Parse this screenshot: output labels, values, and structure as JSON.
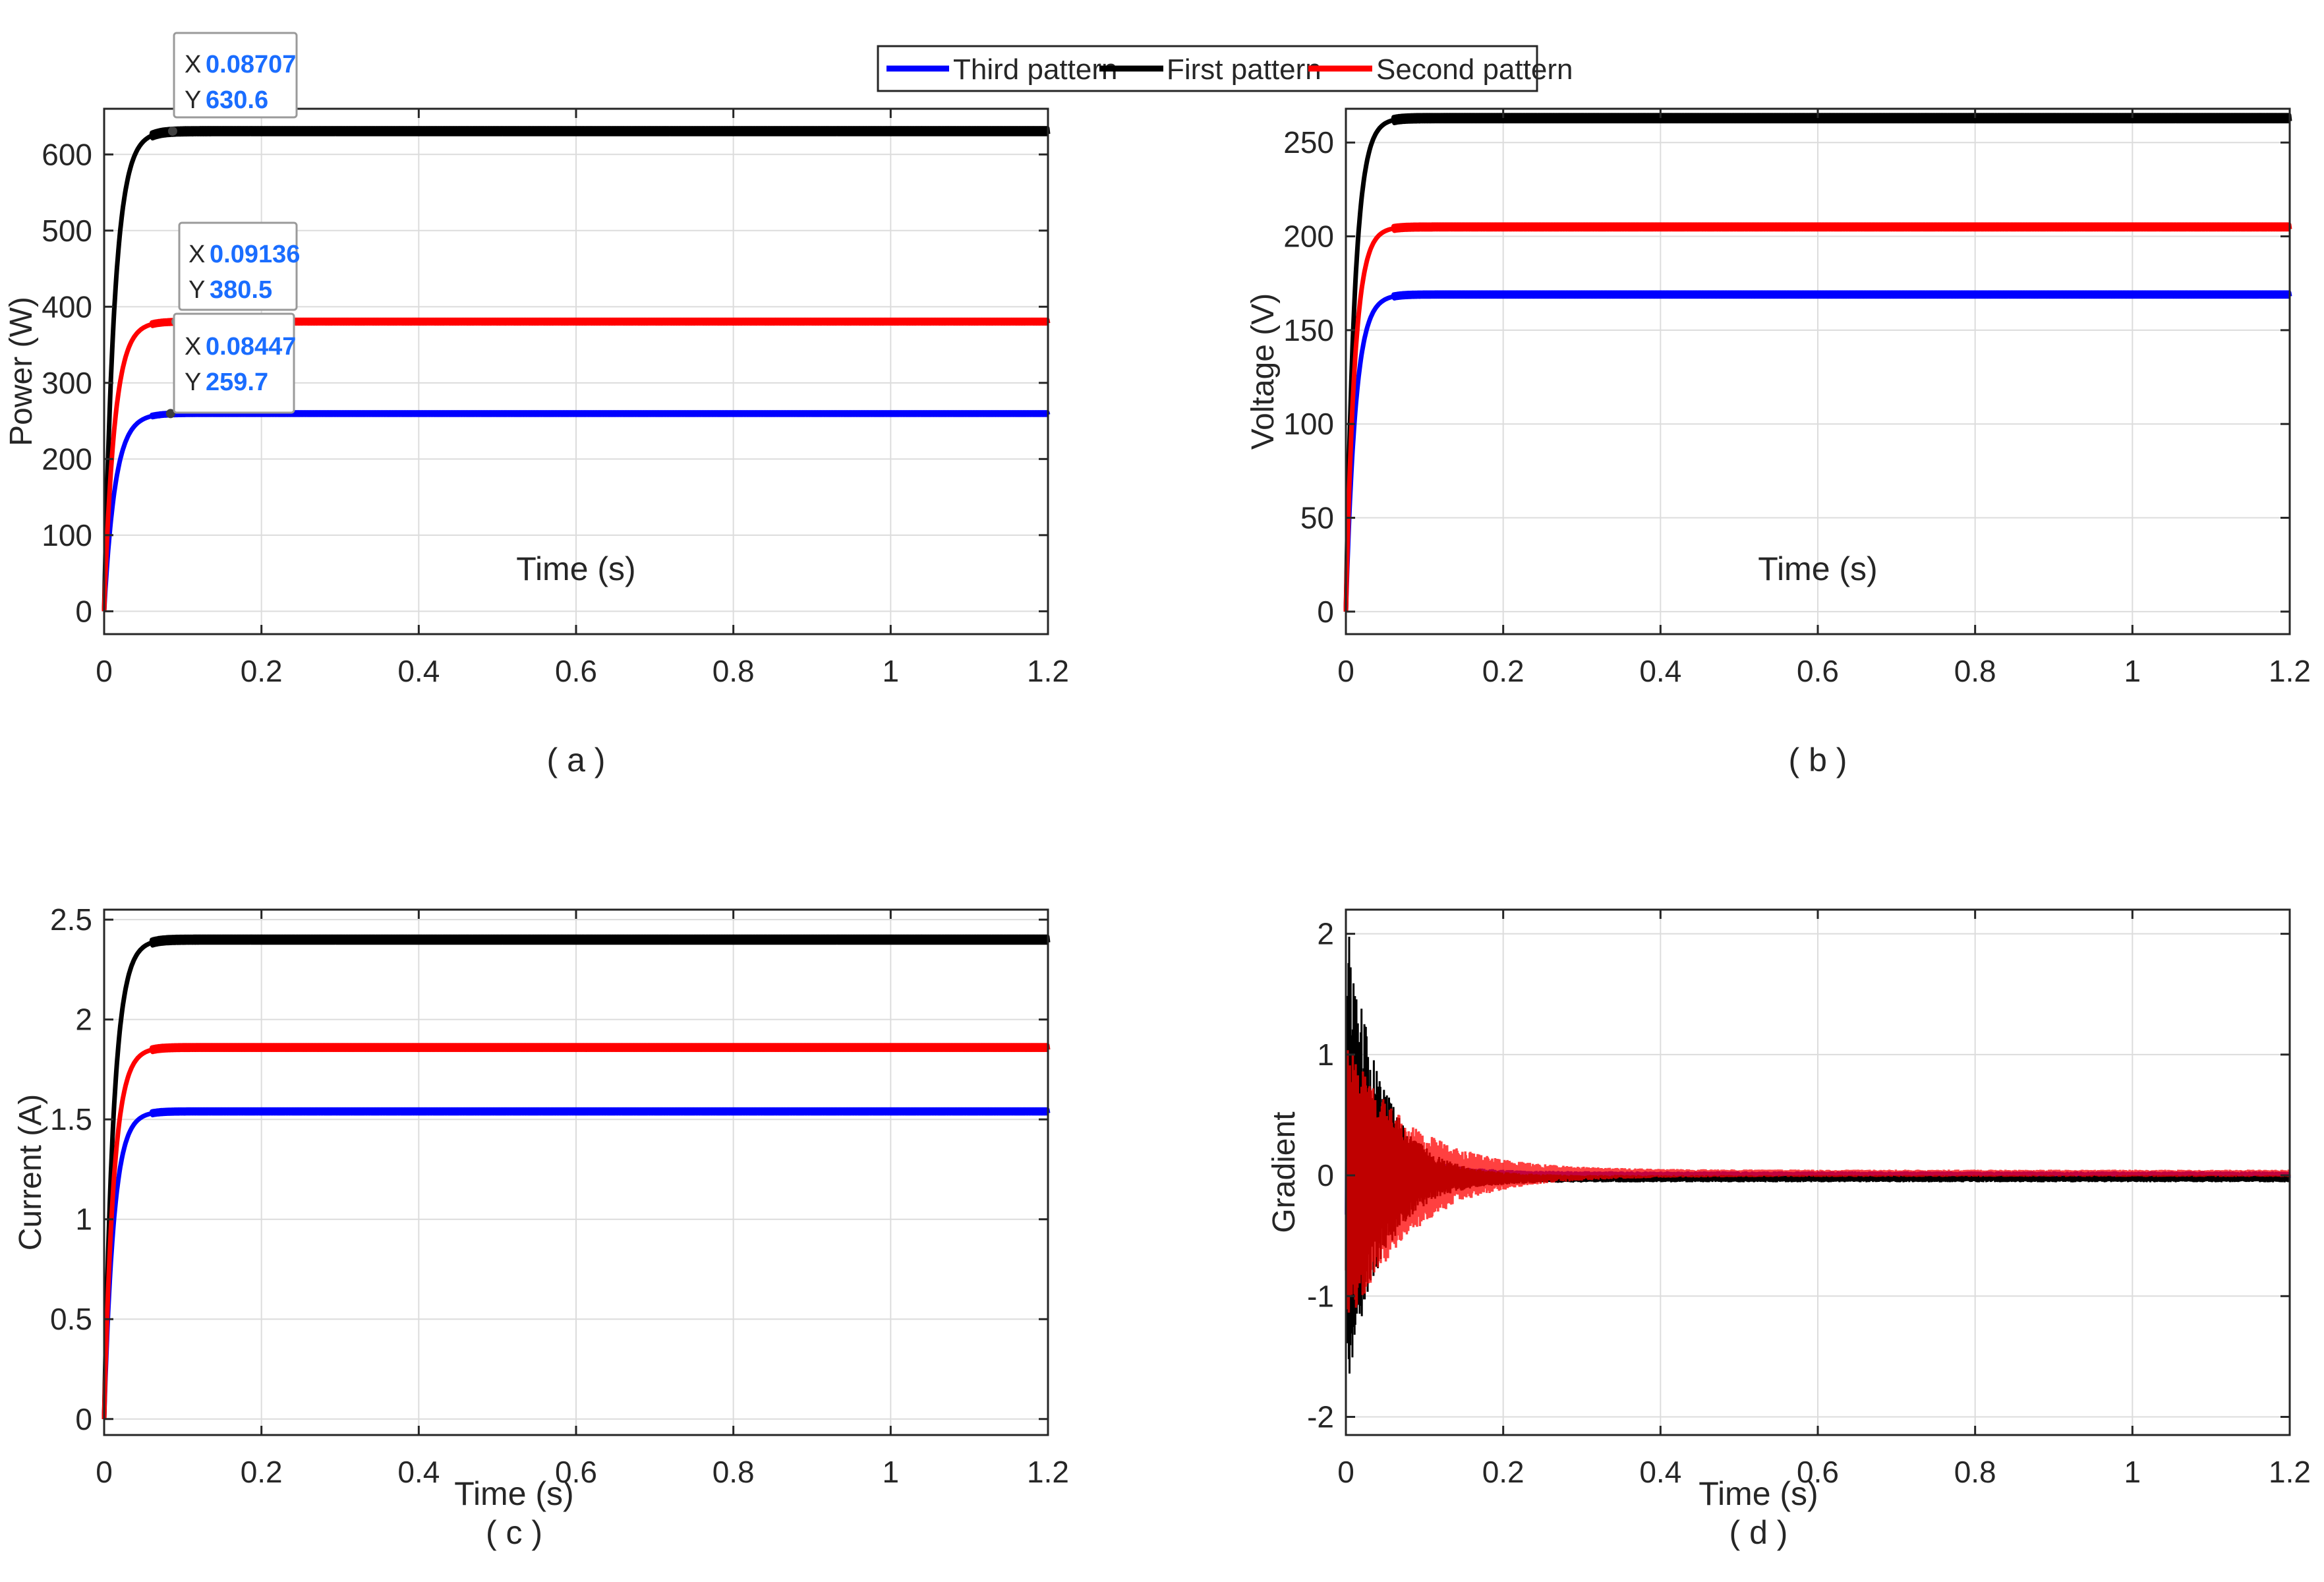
{
  "legend": {
    "position": "top-center",
    "entries": [
      {
        "name": "Third pattern",
        "color": "#0000ff"
      },
      {
        "name": "First pattern",
        "color": "#000000"
      },
      {
        "name": "Second pattern",
        "color": "#ff0000"
      }
    ]
  },
  "chart_data": [
    {
      "id": "a",
      "type": "line",
      "caption": "( a )",
      "xlabel": "Time (s)",
      "ylabel": "Power (W)",
      "xlim": [
        0,
        1.2
      ],
      "ylim": [
        -30,
        660
      ],
      "xticks": [
        0,
        0.2,
        0.4,
        0.6,
        0.8,
        1,
        1.2
      ],
      "xtick_labels": [
        "0",
        "0.2",
        "0.4",
        "0.6",
        "0.8",
        "1",
        "1.2"
      ],
      "yticks": [
        0,
        100,
        200,
        300,
        400,
        500,
        600
      ],
      "ytick_labels": [
        "0",
        "100",
        "200",
        "300",
        "400",
        "500",
        "600"
      ],
      "grid": true,
      "series": [
        {
          "name": "Third pattern",
          "color": "#0000ff",
          "final_value": 259.7,
          "tau": 0.014
        },
        {
          "name": "First pattern",
          "color": "#000000",
          "final_value": 630.6,
          "tau": 0.013
        },
        {
          "name": "Second pattern",
          "color": "#ff0000",
          "final_value": 380.5,
          "tau": 0.013
        }
      ],
      "datatips": [
        {
          "x_label": "X",
          "y_label": "Y",
          "x": "0.08707",
          "y": "630.6",
          "x_value": 0.08707,
          "y_value": 630.6
        },
        {
          "x_label": "X",
          "y_label": "Y",
          "x": "0.09136",
          "y": "380.5",
          "x_value": 0.09136,
          "y_value": 380.5
        },
        {
          "x_label": "X",
          "y_label": "Y",
          "x": "0.08447",
          "y": "259.7",
          "x_value": 0.08447,
          "y_value": 259.7
        }
      ]
    },
    {
      "id": "b",
      "type": "line",
      "caption": "( b )",
      "xlabel": "Time (s)",
      "ylabel": "Voltage (V)",
      "xlim": [
        0,
        1.2
      ],
      "ylim": [
        -12,
        268
      ],
      "xticks": [
        0,
        0.2,
        0.4,
        0.6,
        0.8,
        1,
        1.2
      ],
      "xtick_labels": [
        "0",
        "0.2",
        "0.4",
        "0.6",
        "0.8",
        "1",
        "1.2"
      ],
      "yticks": [
        0,
        50,
        100,
        150,
        200,
        250
      ],
      "ytick_labels": [
        "0",
        "50",
        "100",
        "150",
        "200",
        "250"
      ],
      "grid": true,
      "series": [
        {
          "name": "Third pattern",
          "color": "#0000ff",
          "final_value": 169,
          "tau": 0.012
        },
        {
          "name": "First pattern",
          "color": "#000000",
          "final_value": 263,
          "tau": 0.011
        },
        {
          "name": "Second pattern",
          "color": "#ff0000",
          "final_value": 205,
          "tau": 0.011
        }
      ]
    },
    {
      "id": "c",
      "type": "line",
      "caption": "( c )",
      "xlabel": "Time (s)",
      "ylabel": "Current (A)",
      "xlim": [
        0,
        1.2
      ],
      "ylim": [
        -0.08,
        2.55
      ],
      "xticks": [
        0,
        0.2,
        0.4,
        0.6,
        0.8,
        1,
        1.2
      ],
      "xtick_labels": [
        "0",
        "0.2",
        "0.4",
        "0.6",
        "0.8",
        "1",
        "1.2"
      ],
      "yticks": [
        0,
        0.5,
        1,
        1.5,
        2,
        2.5
      ],
      "ytick_labels": [
        "0",
        "0.5",
        "1",
        "1.5",
        "2",
        "2.5"
      ],
      "grid": true,
      "series": [
        {
          "name": "Third pattern",
          "color": "#0000ff",
          "final_value": 1.54,
          "tau": 0.012
        },
        {
          "name": "First pattern",
          "color": "#000000",
          "final_value": 2.4,
          "tau": 0.012
        },
        {
          "name": "Second pattern",
          "color": "#ff0000",
          "final_value": 1.86,
          "tau": 0.012
        }
      ]
    },
    {
      "id": "d",
      "type": "line",
      "caption": "( d )",
      "xlabel": "Time (s)",
      "ylabel": "Gradient",
      "xlim": [
        0,
        1.2
      ],
      "ylim": [
        -2.15,
        2.2
      ],
      "xticks": [
        0,
        0.2,
        0.4,
        0.6,
        0.8,
        1,
        1.2
      ],
      "xtick_labels": [
        "0",
        "0.2",
        "0.4",
        "0.6",
        "0.8",
        "1",
        "1.2"
      ],
      "yticks": [
        -2,
        -1,
        0,
        1,
        2
      ],
      "ytick_labels": [
        "-2",
        "-1",
        "0",
        "1",
        "2"
      ],
      "grid": true,
      "series": [
        {
          "name": "Third pattern",
          "color": "#0000ff",
          "amplitude": 0.7,
          "decay": 0.05,
          "offset": 0,
          "bias": 0.3
        },
        {
          "name": "First pattern",
          "color": "#000000",
          "amplitude": 2.0,
          "decay": 0.045,
          "offset": -0.03,
          "bias": 0.25
        },
        {
          "name": "Second pattern",
          "color": "#ff0000",
          "amplitude": 1.2,
          "decay": 0.08,
          "offset": 0.02,
          "bias": -0.3
        }
      ]
    }
  ]
}
